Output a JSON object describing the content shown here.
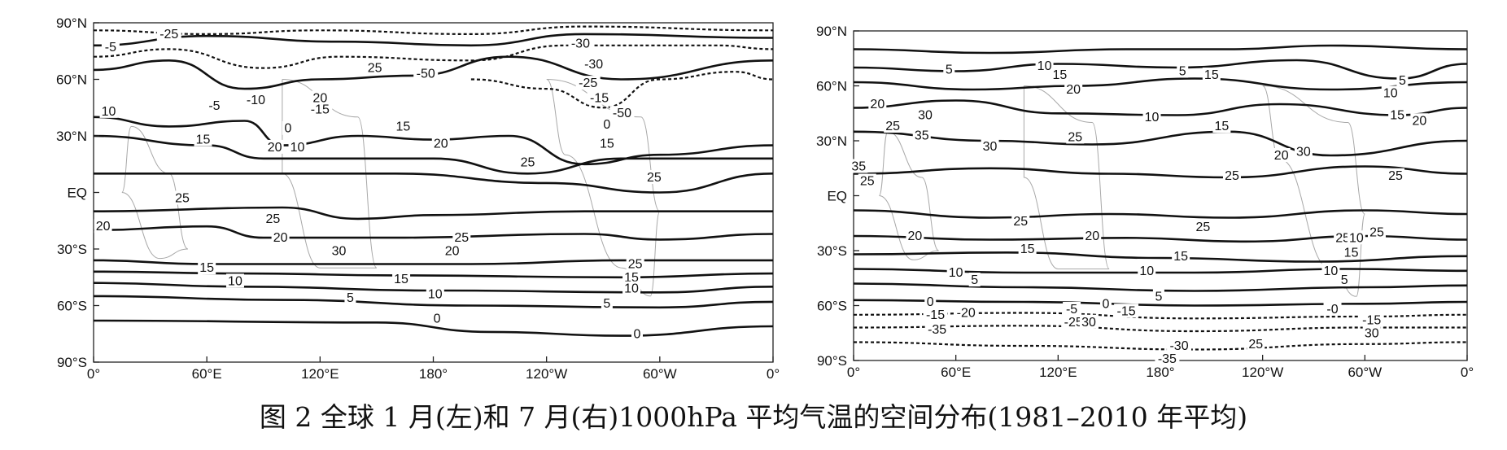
{
  "caption": "图 2 全球 1 月(左)和 7 月(右)1000hPa 平均气温的空间分布(1981–2010 年平均)",
  "chart_data": [
    {
      "type": "contour",
      "y_ticks": [
        "90°N",
        "60°N",
        "30°N",
        "EQ",
        "30°S",
        "60°S",
        "90°S"
      ],
      "x_ticks": [
        "0°",
        "60°E",
        "120°E",
        "180°",
        "120°W",
        "60°W",
        "0°"
      ],
      "xlim": [
        0,
        360
      ],
      "ylim": [
        -90,
        90
      ],
      "contour_labels": [
        {
          "text": "-25",
          "lon": 40,
          "lat": 84
        },
        {
          "text": "-5",
          "lon": 9,
          "lat": 77
        },
        {
          "text": "-30",
          "lon": 258,
          "lat": 79
        },
        {
          "text": "-30",
          "lon": 265,
          "lat": 68
        },
        {
          "text": "-25",
          "lon": 262,
          "lat": 58
        },
        {
          "text": "-15",
          "lon": 268,
          "lat": 50
        },
        {
          "text": "-50",
          "lon": 280,
          "lat": 42
        },
        {
          "text": "-50",
          "lon": 176,
          "lat": 63
        },
        {
          "text": "25",
          "lon": 149,
          "lat": 66
        },
        {
          "text": "-10",
          "lon": 86,
          "lat": 49
        },
        {
          "text": "-5",
          "lon": 64,
          "lat": 46
        },
        {
          "text": "20",
          "lon": 120,
          "lat": 50
        },
        {
          "text": "-15",
          "lon": 120,
          "lat": 44
        },
        {
          "text": "10",
          "lon": 8,
          "lat": 43
        },
        {
          "text": "0",
          "lon": 103,
          "lat": 34
        },
        {
          "text": "15",
          "lon": 58,
          "lat": 28
        },
        {
          "text": "10",
          "lon": 108,
          "lat": 24
        },
        {
          "text": "20",
          "lon": 96,
          "lat": 24
        },
        {
          "text": "15",
          "lon": 164,
          "lat": 35
        },
        {
          "text": "20",
          "lon": 184,
          "lat": 26
        },
        {
          "text": "25",
          "lon": 230,
          "lat": 16
        },
        {
          "text": "0",
          "lon": 272,
          "lat": 36
        },
        {
          "text": "15",
          "lon": 272,
          "lat": 26
        },
        {
          "text": "25",
          "lon": 297,
          "lat": 8
        },
        {
          "text": "25",
          "lon": 47,
          "lat": -3
        },
        {
          "text": "20",
          "lon": 5,
          "lat": -18
        },
        {
          "text": "25",
          "lon": 95,
          "lat": -14
        },
        {
          "text": "20",
          "lon": 99,
          "lat": -24
        },
        {
          "text": "30",
          "lon": 130,
          "lat": -31
        },
        {
          "text": "25",
          "lon": 195,
          "lat": -24
        },
        {
          "text": "20",
          "lon": 190,
          "lat": -31
        },
        {
          "text": "15",
          "lon": 60,
          "lat": -40
        },
        {
          "text": "10",
          "lon": 75,
          "lat": -47
        },
        {
          "text": "15",
          "lon": 163,
          "lat": -46
        },
        {
          "text": "10",
          "lon": 181,
          "lat": -54
        },
        {
          "text": "5",
          "lon": 136,
          "lat": -56
        },
        {
          "text": "25",
          "lon": 287,
          "lat": -38
        },
        {
          "text": "15",
          "lon": 285,
          "lat": -45
        },
        {
          "text": "10",
          "lon": 285,
          "lat": -51
        },
        {
          "text": "5",
          "lon": 272,
          "lat": -59
        },
        {
          "text": "0",
          "lon": 182,
          "lat": -67
        },
        {
          "text": "0",
          "lon": 288,
          "lat": -75
        }
      ]
    },
    {
      "type": "contour",
      "y_ticks": [
        "90°N",
        "60°N",
        "30°N",
        "EQ",
        "30°S",
        "60°S",
        "90°S"
      ],
      "x_ticks": [
        "0°",
        "60°E",
        "120°E",
        "180°",
        "120°W",
        "60°W",
        "0°"
      ],
      "xlim": [
        0,
        360
      ],
      "ylim": [
        -90,
        90
      ],
      "contour_labels": [
        {
          "text": "5",
          "lon": 56,
          "lat": 69
        },
        {
          "text": "10",
          "lon": 112,
          "lat": 71
        },
        {
          "text": "15",
          "lon": 121,
          "lat": 66
        },
        {
          "text": "5",
          "lon": 193,
          "lat": 68
        },
        {
          "text": "15",
          "lon": 210,
          "lat": 66
        },
        {
          "text": "5",
          "lon": 322,
          "lat": 63
        },
        {
          "text": "10",
          "lon": 315,
          "lat": 56
        },
        {
          "text": "20",
          "lon": 129,
          "lat": 58
        },
        {
          "text": "20",
          "lon": 14,
          "lat": 50
        },
        {
          "text": "30",
          "lon": 42,
          "lat": 44
        },
        {
          "text": "25",
          "lon": 23,
          "lat": 38
        },
        {
          "text": "35",
          "lon": 40,
          "lat": 33
        },
        {
          "text": "30",
          "lon": 80,
          "lat": 27
        },
        {
          "text": "10",
          "lon": 175,
          "lat": 43
        },
        {
          "text": "15",
          "lon": 216,
          "lat": 38
        },
        {
          "text": "25",
          "lon": 130,
          "lat": 32
        },
        {
          "text": "15",
          "lon": 319,
          "lat": 44
        },
        {
          "text": "20",
          "lon": 332,
          "lat": 41
        },
        {
          "text": "20",
          "lon": 251,
          "lat": 22
        },
        {
          "text": "30",
          "lon": 264,
          "lat": 24
        },
        {
          "text": "25",
          "lon": 222,
          "lat": 11
        },
        {
          "text": "25",
          "lon": 318,
          "lat": 11
        },
        {
          "text": "35",
          "lon": 3,
          "lat": 16
        },
        {
          "text": "25",
          "lon": 8,
          "lat": 8
        },
        {
          "text": "25",
          "lon": 98,
          "lat": -14
        },
        {
          "text": "20",
          "lon": 36,
          "lat": -22
        },
        {
          "text": "20",
          "lon": 140,
          "lat": -22
        },
        {
          "text": "25",
          "lon": 205,
          "lat": -17
        },
        {
          "text": "15",
          "lon": 102,
          "lat": -29
        },
        {
          "text": "15",
          "lon": 192,
          "lat": -33
        },
        {
          "text": "25",
          "lon": 287,
          "lat": -23
        },
        {
          "text": "10",
          "lon": 295,
          "lat": -23
        },
        {
          "text": "25",
          "lon": 307,
          "lat": -20
        },
        {
          "text": "15",
          "lon": 292,
          "lat": -31
        },
        {
          "text": "10",
          "lon": 60,
          "lat": -42
        },
        {
          "text": "5",
          "lon": 71,
          "lat": -46
        },
        {
          "text": "10",
          "lon": 172,
          "lat": -41
        },
        {
          "text": "10",
          "lon": 280,
          "lat": -41
        },
        {
          "text": "5",
          "lon": 288,
          "lat": -46
        },
        {
          "text": "5",
          "lon": 179,
          "lat": -55
        },
        {
          "text": "0",
          "lon": 45,
          "lat": -58
        },
        {
          "text": "-15",
          "lon": 48,
          "lat": -65
        },
        {
          "text": "-20",
          "lon": 66,
          "lat": -64
        },
        {
          "text": "-35",
          "lon": 49,
          "lat": -73
        },
        {
          "text": "-5",
          "lon": 128,
          "lat": -62
        },
        {
          "text": "0",
          "lon": 148,
          "lat": -59
        },
        {
          "text": "-15",
          "lon": 160,
          "lat": -63
        },
        {
          "text": "-25",
          "lon": 129,
          "lat": -69
        },
        {
          "text": "30",
          "lon": 138,
          "lat": -69
        },
        {
          "text": "-0",
          "lon": 281,
          "lat": -62
        },
        {
          "text": "-15",
          "lon": 304,
          "lat": -68
        },
        {
          "text": "30",
          "lon": 304,
          "lat": -75
        },
        {
          "text": "-30",
          "lon": 191,
          "lat": -82
        },
        {
          "text": "25",
          "lon": 236,
          "lat": -81
        },
        {
          "text": "-35",
          "lon": 184,
          "lat": -89
        }
      ]
    }
  ]
}
